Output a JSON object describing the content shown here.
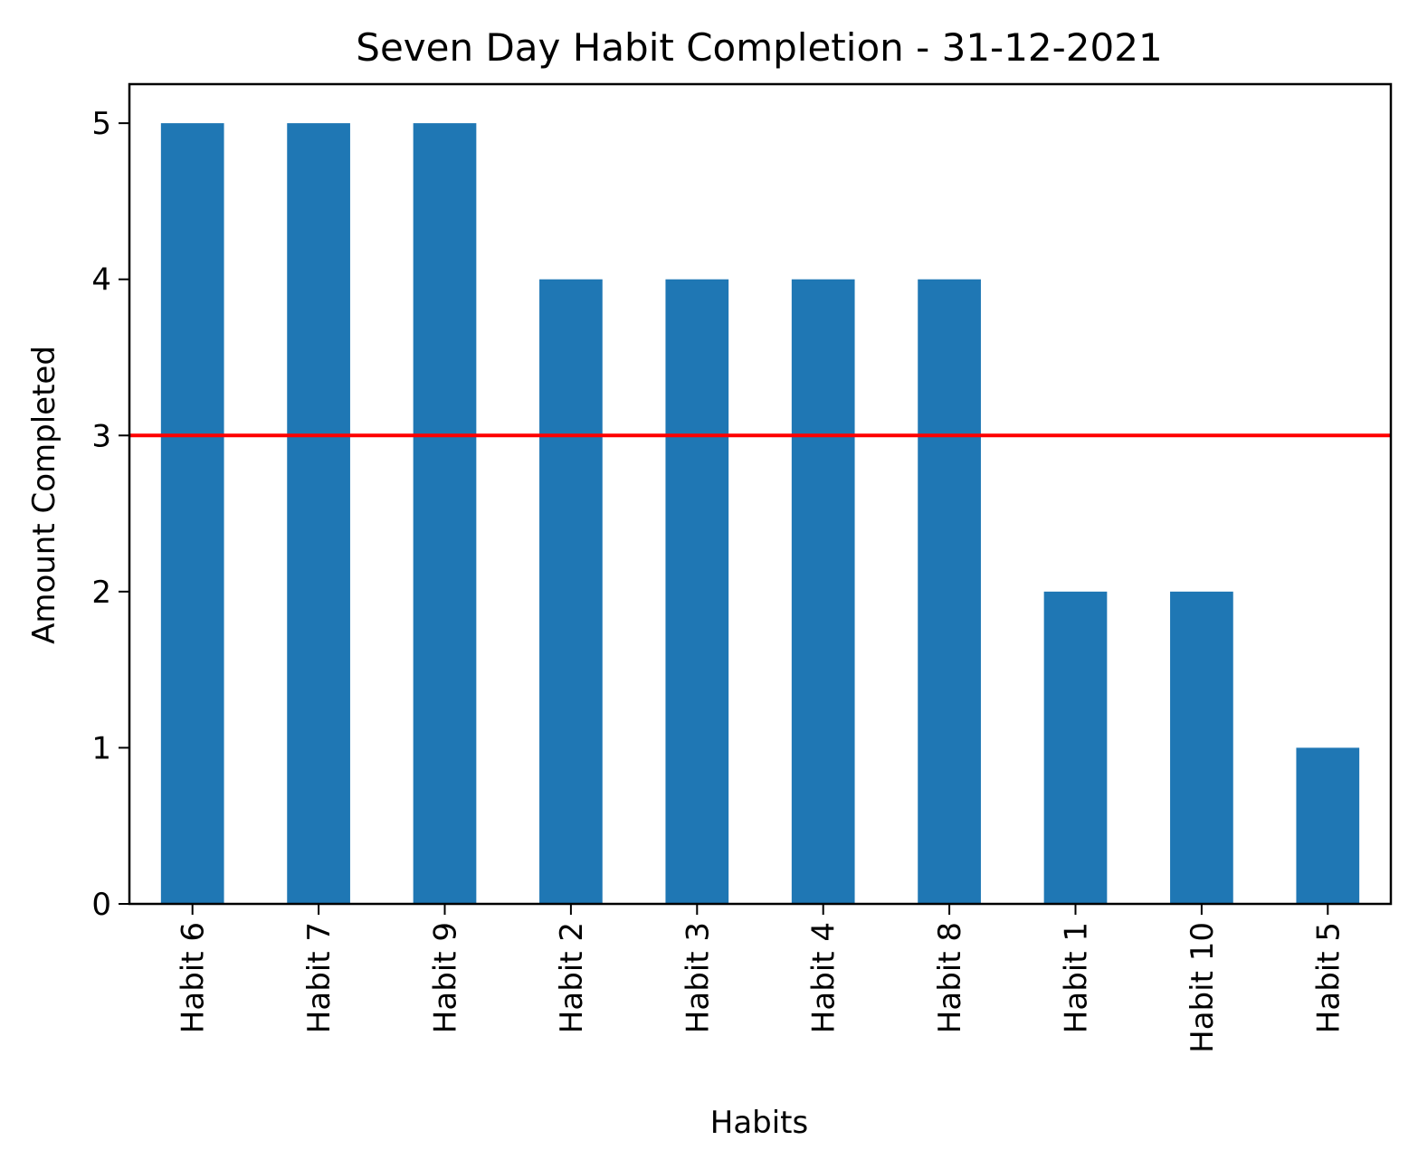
{
  "chart_data": {
    "type": "bar",
    "title": "Seven Day Habit Completion - 31-12-2021",
    "xlabel": "Habits",
    "ylabel": "Amount Completed",
    "categories": [
      "Habit 6",
      "Habit 7",
      "Habit 9",
      "Habit 2",
      "Habit 3",
      "Habit 4",
      "Habit 8",
      "Habit 1",
      "Habit 10",
      "Habit 5"
    ],
    "values": [
      5,
      5,
      5,
      4,
      4,
      4,
      4,
      2,
      2,
      1
    ],
    "ylim": [
      0,
      5.25
    ],
    "yticks": [
      0,
      1,
      2,
      3,
      4,
      5
    ],
    "bar_color": "#1f77b4",
    "reference_line": {
      "y": 3,
      "color": "#ff0000"
    },
    "grid": false,
    "legend": "none"
  }
}
